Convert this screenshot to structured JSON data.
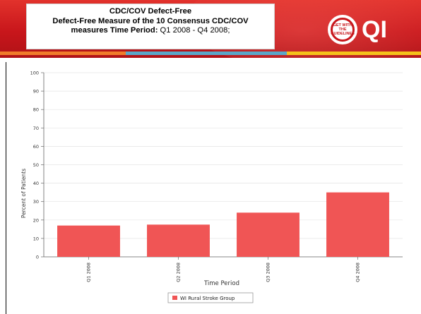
{
  "header": {
    "title_line1": "CDC/COV Defect-Free",
    "title_line2": "Defect-Free Measure of the 10 Consensus CDC/COV",
    "title_line3_bold": "measures Time Period:",
    "title_line3_normal": " Q1 2008 - Q4 2008;",
    "logo_badge_text": "GET WITH THE GUIDELINES",
    "logo_text": "QI",
    "colors": {
      "header_red": "#c8161b",
      "stripe_orange": "#f07c2a",
      "stripe_blue": "#5aa7c8",
      "stripe_yellow": "#f5c21a"
    }
  },
  "chart_data": {
    "type": "bar",
    "categories": [
      "Q1 2008",
      "Q2 2008",
      "Q3 2008",
      "Q4 2008"
    ],
    "series": [
      {
        "name": "WI Rural Stroke Group",
        "values": [
          17,
          17.5,
          24,
          35
        ],
        "color": "#f05555"
      }
    ],
    "xlabel": "Time Period",
    "ylabel": "Percent of Patients",
    "ylim": [
      0,
      100
    ],
    "yticks": [
      0,
      10,
      20,
      30,
      40,
      50,
      60,
      70,
      80,
      90,
      100
    ],
    "grid": true,
    "legend": "bottom-center"
  }
}
